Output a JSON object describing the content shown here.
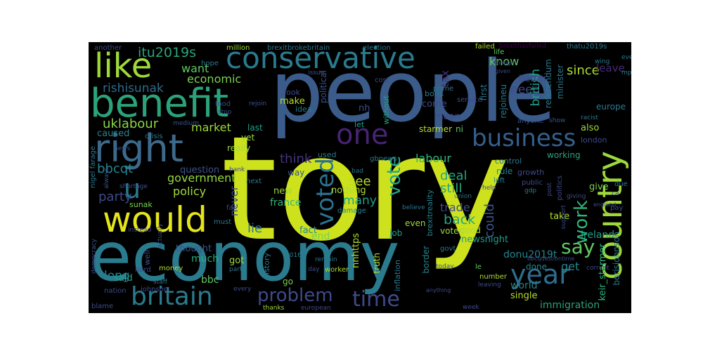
{
  "background": "#000000",
  "words": [
    {
      "text": "tory",
      "color": "#cde11d"
    },
    {
      "text": "people",
      "color": "#3b5c8b"
    },
    {
      "text": "economy",
      "color": "#2a7b8e"
    },
    {
      "text": "conservative",
      "color": "#2a7b8e"
    },
    {
      "text": "benefit",
      "color": "#2ba27a"
    },
    {
      "text": "like",
      "color": "#9ed93a"
    },
    {
      "text": "right",
      "color": "#3d6a8c"
    },
    {
      "text": "would",
      "color": "#e4e51a"
    },
    {
      "text": "country",
      "color": "#9ed93a"
    },
    {
      "text": "britain",
      "color": "#2a7b8e"
    },
    {
      "text": "business",
      "color": "#355f8d"
    },
    {
      "text": "year",
      "color": "#2f6c8e"
    },
    {
      "text": "problem",
      "color": "#3e4a89"
    },
    {
      "text": "time",
      "color": "#3e4a89"
    },
    {
      "text": "one",
      "color": "#482374"
    },
    {
      "text": "voted",
      "color": "#2c718e"
    },
    {
      "text": "vote",
      "color": "#21a685"
    },
    {
      "text": "say",
      "color": "#5ec962"
    },
    {
      "text": "work",
      "color": "#2fb47c"
    },
    {
      "text": "u",
      "color": "#2a788e"
    },
    {
      "text": "itu2019s",
      "color": "#2ba27a"
    },
    {
      "text": "uklabour",
      "color": "#8bd646"
    },
    {
      "text": "economic",
      "color": "#7ad151"
    },
    {
      "text": "want",
      "color": "#5ec962"
    },
    {
      "text": "rishisunak",
      "color": "#2f6c8e"
    },
    {
      "text": "market",
      "color": "#9fda3a"
    },
    {
      "text": "bbcqt",
      "color": "#25858e"
    },
    {
      "text": "government",
      "color": "#95d840"
    },
    {
      "text": "policy",
      "color": "#a0da39"
    },
    {
      "text": "party",
      "color": "#3e4a89"
    },
    {
      "text": "since",
      "color": "#addc30"
    },
    {
      "text": "leave",
      "color": "#482878"
    },
    {
      "text": "know",
      "color": "#5ec962"
    },
    {
      "text": "need",
      "color": "#3e4a89"
    },
    {
      "text": "british",
      "color": "#1f9e89"
    },
    {
      "text": "tax",
      "color": "#46337e"
    },
    {
      "text": "labour",
      "color": "#2fb47c"
    },
    {
      "text": "think",
      "color": "#46337e"
    },
    {
      "text": "deal",
      "color": "#22a884"
    },
    {
      "text": "still",
      "color": "#22a884"
    },
    {
      "text": "see",
      "color": "#b5de2b"
    },
    {
      "text": "many",
      "color": "#1fa088"
    },
    {
      "text": "back",
      "color": "#22a884"
    },
    {
      "text": "trade",
      "color": "#3e4a89"
    },
    {
      "text": "could",
      "color": "#3a548c"
    },
    {
      "text": "lie",
      "color": "#2c728e"
    },
    {
      "text": "never",
      "color": "#3e4a89"
    },
    {
      "text": "long",
      "color": "#25848e"
    },
    {
      "text": "get",
      "color": "#25848e"
    },
    {
      "text": "give",
      "color": "#7ad151"
    },
    {
      "text": "also",
      "color": "#9fda3a"
    },
    {
      "text": "europe",
      "color": "#2a788e"
    },
    {
      "text": "ireland",
      "color": "#1f9e89"
    },
    {
      "text": "immigration",
      "color": "#2ba27a"
    },
    {
      "text": "keir_starmer",
      "color": "#2fb47c"
    },
    {
      "text": "borisjohnson",
      "color": "#2a788e"
    },
    {
      "text": "donu2019t",
      "color": "#26828e"
    },
    {
      "text": "world",
      "color": "#25858e"
    },
    {
      "text": "single",
      "color": "#b5de2b"
    },
    {
      "text": "bbc",
      "color": "#5ec962"
    },
    {
      "text": "said",
      "color": "#1fa088"
    },
    {
      "text": "much",
      "color": "#29af7f"
    },
    {
      "text": "got",
      "color": "#9fda3a"
    },
    {
      "text": "thought",
      "color": "#3b528b"
    },
    {
      "text": "question",
      "color": "#3b528b"
    },
    {
      "text": "caused",
      "color": "#25848e"
    },
    {
      "text": "end",
      "color": "#7ad151"
    },
    {
      "text": "fact",
      "color": "#25858e"
    },
    {
      "text": "new",
      "color": "#9fda3a"
    },
    {
      "text": "france",
      "color": "#35b779"
    },
    {
      "text": "nothing",
      "color": "#addc30"
    },
    {
      "text": "make",
      "color": "#b5de2b"
    },
    {
      "text": "come",
      "color": "#3e4a89"
    },
    {
      "text": "mean",
      "color": "#3e4a89"
    },
    {
      "text": "nh",
      "color": "#3e4a89"
    },
    {
      "text": "rejoineu",
      "color": "#2a788e"
    },
    {
      "text": "first",
      "color": "#2a788e"
    },
    {
      "text": "better",
      "color": "#3e4a89"
    },
    {
      "text": "referendum",
      "color": "#2a788e"
    },
    {
      "text": "minister",
      "color": "#2a788e"
    },
    {
      "text": "starmer",
      "color": "#b5de2b"
    },
    {
      "text": "ni",
      "color": "#5ec962"
    },
    {
      "text": "nnhttps",
      "color": "#addc30"
    },
    {
      "text": "newsnight",
      "color": "#1f9e89"
    },
    {
      "text": "good",
      "color": "#addc30"
    },
    {
      "text": "voter",
      "color": "#9fda3a"
    },
    {
      "text": "job",
      "color": "#1f9e89"
    },
    {
      "text": "even",
      "color": "#9fda3a"
    },
    {
      "text": "truth",
      "color": "#b5de2b"
    },
    {
      "text": "border",
      "color": "#25858e"
    },
    {
      "text": "inflation",
      "color": "#2a788e"
    },
    {
      "text": "brexitreality",
      "color": "#25848e"
    },
    {
      "text": "history",
      "color": "#2a788e"
    },
    {
      "text": "go",
      "color": "#7ad151"
    },
    {
      "text": "done",
      "color": "#25858e"
    },
    {
      "text": "take",
      "color": "#b5de2b"
    },
    {
      "text": "working",
      "color": "#2ba27a"
    },
    {
      "text": "growth",
      "color": "#3e4a89"
    },
    {
      "text": "rule",
      "color": "#25858e"
    },
    {
      "text": "way",
      "color": "#3b528b"
    },
    {
      "text": "really",
      "color": "#a0da39"
    },
    {
      "text": "yet",
      "color": "#9fda3a"
    },
    {
      "text": "last",
      "color": "#1fa088"
    },
    {
      "text": "used",
      "color": "#2a788e"
    },
    {
      "text": "let",
      "color": "#1fa088"
    },
    {
      "text": "political",
      "color": "#3b528b"
    },
    {
      "text": "look",
      "color": "#3e4a89"
    },
    {
      "text": "idea",
      "color": "#2a788e"
    },
    {
      "text": "without",
      "color": "#1fa088"
    },
    {
      "text": "boris",
      "color": "#2a788e"
    },
    {
      "text": "cost",
      "color": "#3e4a89"
    },
    {
      "text": "prime",
      "color": "#2a788e"
    },
    {
      "text": "service",
      "color": "#3e4a89"
    },
    {
      "text": "hope",
      "color": "#2a788e"
    },
    {
      "text": "million",
      "color": "#9fda3a"
    },
    {
      "text": "brexitbrokebritain",
      "color": "#2a788e"
    },
    {
      "text": "election",
      "color": "#2a788e"
    },
    {
      "text": "failed",
      "color": "#addc30"
    },
    {
      "text": "brexithasfailed",
      "color": "#440154"
    },
    {
      "text": "thatu2019s",
      "color": "#2a788e"
    },
    {
      "text": "another",
      "color": "#3e4a89"
    },
    {
      "text": "life",
      "color": "#5ec962"
    },
    {
      "text": "ever",
      "color": "#2a788e"
    },
    {
      "text": "mp",
      "color": "#2a788e"
    },
    {
      "text": "racist",
      "color": "#2a788e"
    },
    {
      "text": "wing",
      "color": "#2a788e"
    },
    {
      "text": "crisis",
      "color": "#2a788e"
    },
    {
      "text": "nigel farage",
      "color": "#2a788e"
    },
    {
      "text": "food",
      "color": "#3e4a89"
    },
    {
      "text": "stop",
      "color": "#3e4a89"
    },
    {
      "text": "rejoin",
      "color": "#3b528b"
    },
    {
      "text": "news",
      "color": "#3b528b"
    },
    {
      "text": "medium",
      "color": "#3b528b"
    },
    {
      "text": "always",
      "color": "#3b528b"
    },
    {
      "text": "shortage",
      "color": "#3b528b"
    },
    {
      "text": "sunak",
      "color": "#7ad151"
    },
    {
      "text": "bank",
      "color": "#3e4a89"
    },
    {
      "text": "next",
      "color": "#2a788e"
    },
    {
      "text": "issue",
      "color": "#3b528b"
    },
    {
      "text": "gbnews",
      "color": "#2a788e"
    },
    {
      "text": "anyone",
      "color": "#3b528b"
    },
    {
      "text": "show",
      "color": "#3b528b"
    },
    {
      "text": "london",
      "color": "#3e4a89"
    },
    {
      "text": "control",
      "color": "#2a788e"
    },
    {
      "text": "due",
      "color": "#2a788e"
    },
    {
      "text": "public",
      "color": "#3e4a89"
    },
    {
      "text": "gdp",
      "color": "#2a788e"
    },
    {
      "text": "help",
      "color": "#3e4a89"
    },
    {
      "text": "left",
      "color": "#25858e"
    },
    {
      "text": "union",
      "color": "#2a788e"
    },
    {
      "text": "bad",
      "color": "#2a788e"
    },
    {
      "text": "pay",
      "color": "#3e4a89"
    },
    {
      "text": "politics",
      "color": "#3e4a89"
    },
    {
      "text": "support",
      "color": "#3e4a89"
    },
    {
      "text": "post",
      "color": "#3e4a89"
    },
    {
      "text": "must",
      "color": "#2a788e"
    },
    {
      "text": "far",
      "color": "#3e4a89"
    },
    {
      "text": "damage",
      "color": "#25858e"
    },
    {
      "text": "believe",
      "color": "#2a788e"
    },
    {
      "text": "govt",
      "color": "#2a788e"
    },
    {
      "text": "instead",
      "color": "#3e4a89"
    },
    {
      "text": "democracy",
      "color": "#3b528b"
    },
    {
      "text": "actually",
      "color": "#3e4a89"
    },
    {
      "text": "well",
      "color": "#3e4a89"
    },
    {
      "text": "hard",
      "color": "#3e4a89"
    },
    {
      "text": "staff",
      "color": "#2a788e"
    },
    {
      "text": "money",
      "color": "#addc30"
    },
    {
      "text": "part",
      "color": "#2a788e"
    },
    {
      "text": "2016",
      "color": "#2a788e"
    },
    {
      "text": "day",
      "color": "#3e4a89"
    },
    {
      "text": "remain",
      "color": "#2a788e"
    },
    {
      "text": "worker",
      "color": "#addc30"
    },
    {
      "text": "le",
      "color": "#5ec962"
    },
    {
      "text": "number",
      "color": "#addc30"
    },
    {
      "text": "leaving",
      "color": "#3e4a89"
    },
    {
      "text": "week",
      "color": "#3e4a89"
    },
    {
      "text": "today",
      "color": "#3e4a89"
    },
    {
      "text": "anything",
      "color": "#3e4a89"
    },
    {
      "text": "nation",
      "color": "#3e4a89"
    },
    {
      "text": "johnson",
      "color": "#3e4a89"
    },
    {
      "text": "every",
      "color": "#3e4a89"
    },
    {
      "text": "thanks",
      "color": "#9fda3a"
    },
    {
      "text": "european",
      "color": "#3e4a89"
    },
    {
      "text": "blame",
      "color": "#3e4a89"
    },
    {
      "text": "corrupt",
      "color": "#3e4a89"
    },
    {
      "text": "giving",
      "color": "#3e4a89"
    },
    {
      "text": "bbcquestiontime",
      "color": "#3e4a89"
    },
    {
      "text": "change",
      "color": "#3e4a89"
    },
    {
      "text": "given",
      "color": "#3e4a89"
    },
    {
      "text": "ca",
      "color": "#3e4a89"
    },
    {
      "text": "england",
      "color": "#3e4a89"
    }
  ]
}
